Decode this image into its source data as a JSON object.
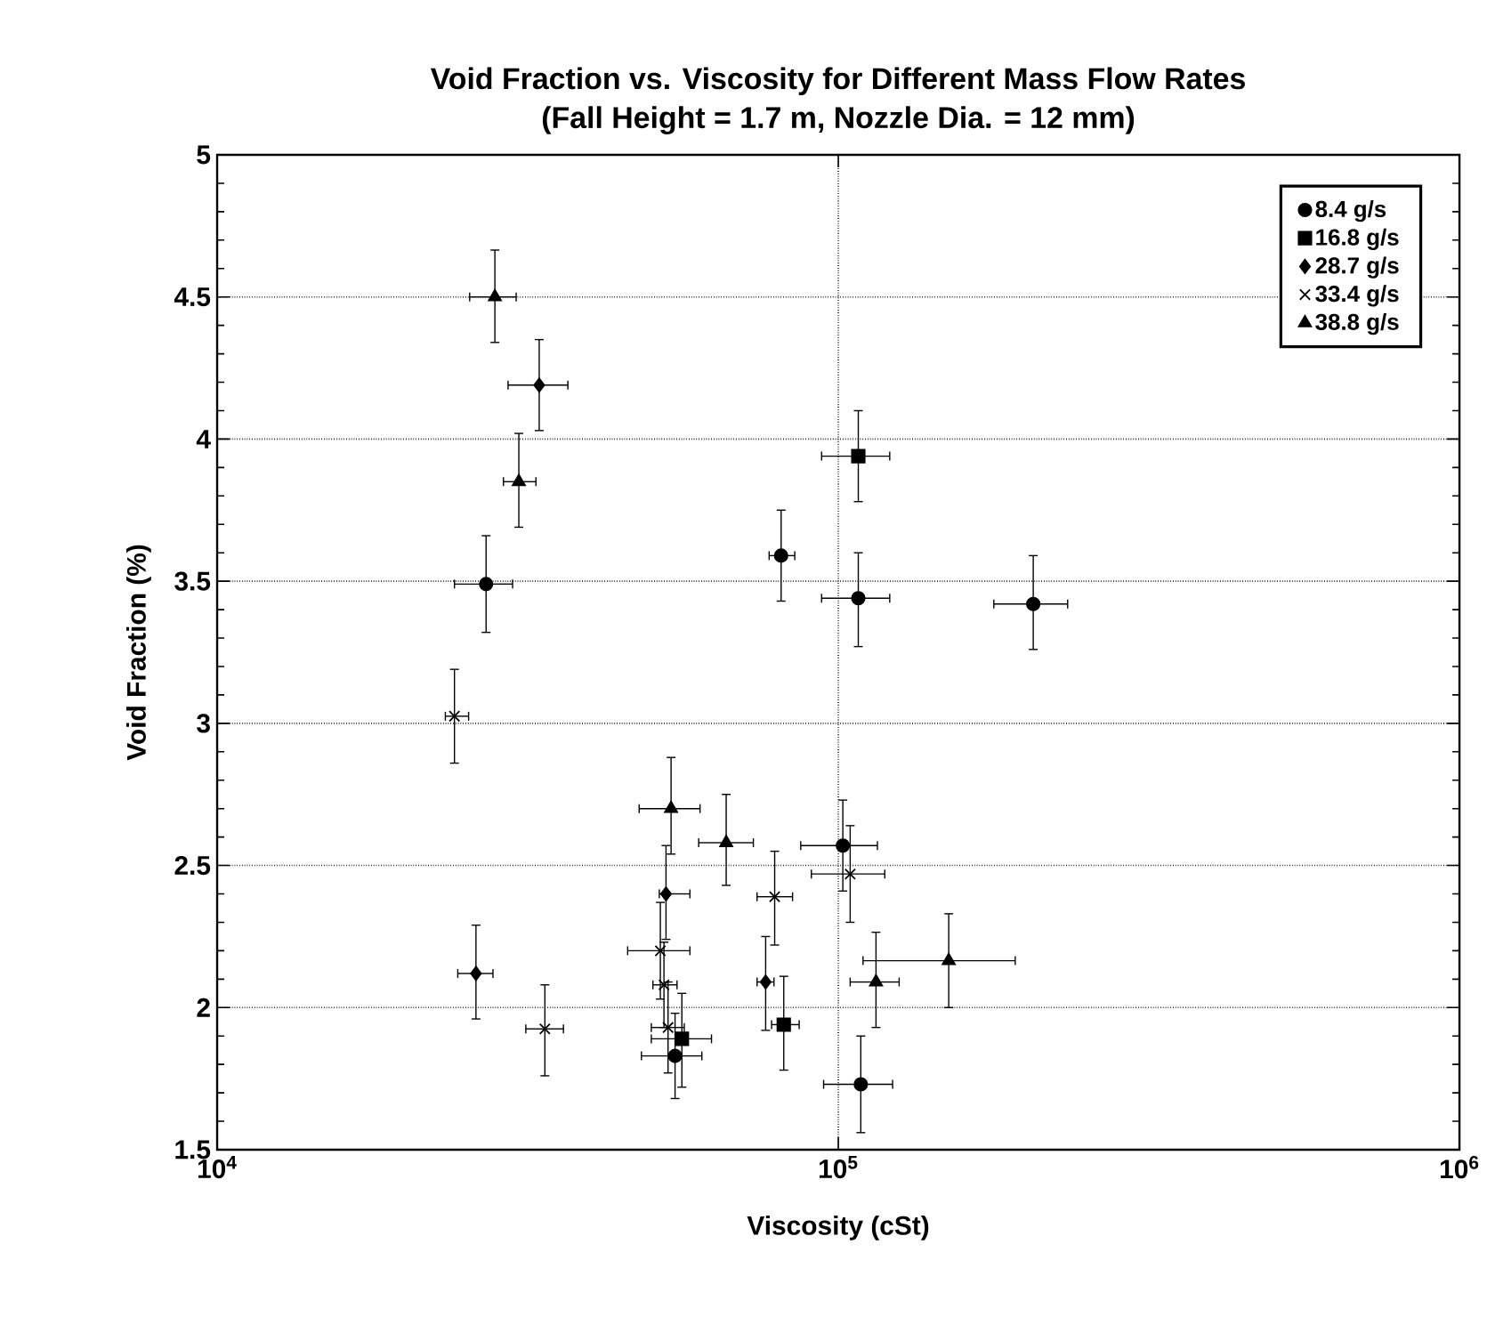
{
  "chart_data": {
    "type": "scatter",
    "title": "Void Fraction vs. Viscosity for Different Mass Flow Rates",
    "subtitle": "(Fall Height = 1.7 m, Nozzle Dia. = 12 mm)",
    "xlabel": "Viscosity (cSt)",
    "ylabel": "Void Fraction (%)",
    "log": "x",
    "grid": true,
    "legend": "top right",
    "xlim": [
      10000,
      1000000
    ],
    "xticks": [
      {
        "value": 10000,
        "label": "10$^{4}$"
      },
      {
        "value": 100000,
        "label": "10$^{5}$"
      },
      {
        "value": 1000000,
        "label": "10$^{6}$"
      }
    ],
    "ylim": [
      1.5,
      5
    ],
    "yticks": [
      1.5,
      2,
      2.5,
      3,
      3.5,
      4,
      4.5,
      5
    ],
    "series": [
      {
        "name": "8.4 g/s",
        "color": "#000000",
        "marker": "circle",
        "x": [
          27100,
          80900,
          107700,
          206000,
          101700,
          54600,
          108700
        ],
        "values": [
          3.49,
          3.59,
          3.44,
          3.42,
          2.57,
          1.83,
          1.73
        ],
        "errors": [
          [
            3.32,
            3.66
          ],
          [
            3.43,
            3.75
          ],
          [
            3.27,
            3.6
          ],
          [
            3.26,
            3.59
          ],
          [
            2.41,
            2.73
          ],
          [
            1.68,
            1.98
          ],
          [
            1.56,
            1.9
          ]
        ],
        "xerrors": [
          [
            24100,
            29900
          ],
          [
            77400,
            85100
          ],
          [
            94000,
            121000
          ],
          [
            178000,
            234000
          ],
          [
            87000,
            115600
          ],
          [
            48200,
            60300
          ],
          [
            94700,
            122300
          ]
        ]
      },
      {
        "name": "16.8 g/s",
        "color": "#000000",
        "marker": "square",
        "x": [
          107700,
          56000,
          81700
        ],
        "values": [
          3.94,
          1.89,
          1.94
        ],
        "errors": [
          [
            3.78,
            4.1
          ],
          [
            1.72,
            2.05
          ],
          [
            1.78,
            2.11
          ]
        ],
        "xerrors": [
          [
            94000,
            121000
          ],
          [
            50000,
            62500
          ],
          [
            78100,
            86500
          ]
        ]
      },
      {
        "name": "28.7 g/s",
        "color": "#000000",
        "marker": "diamond",
        "x": [
          33000,
          52800,
          26100,
          76400
        ],
        "values": [
          4.19,
          2.4,
          2.12,
          2.09
        ],
        "errors": [
          [
            4.03,
            4.35
          ],
          [
            2.24,
            2.57
          ],
          [
            1.96,
            2.29
          ],
          [
            1.92,
            2.25
          ]
        ],
        "xerrors": [
          [
            29400,
            36700
          ],
          [
            51500,
            57700
          ],
          [
            24400,
            27800
          ],
          [
            74000,
            78800
          ]
        ]
      },
      {
        "name": "33.4 g/s",
        "color": "#000000",
        "marker": "cross",
        "x": [
          24100,
          79000,
          51700,
          33700,
          52400,
          53200,
          104500
        ],
        "values": [
          3.025,
          2.39,
          2.2,
          1.925,
          2.08,
          1.93,
          2.47
        ],
        "errors": [
          [
            2.86,
            3.19
          ],
          [
            2.22,
            2.55
          ],
          [
            2.03,
            2.37
          ],
          [
            1.76,
            2.08
          ],
          [
            1.93,
            2.23
          ],
          [
            1.77,
            2.09
          ],
          [
            2.3,
            2.64
          ]
        ],
        "xerrors": [
          [
            23300,
            25400
          ],
          [
            74000,
            84400
          ],
          [
            45800,
            57700
          ],
          [
            31400,
            36100
          ],
          [
            50300,
            55000
          ],
          [
            50000,
            56500
          ],
          [
            90500,
            118800
          ]
        ]
      },
      {
        "name": "38.8 g/s",
        "color": "#000000",
        "marker": "triangle",
        "x": [
          28000,
          30600,
          53800,
          66000,
          115000,
          150600
        ],
        "values": [
          4.5,
          3.85,
          2.7,
          2.58,
          2.09,
          2.165
        ],
        "errors": [
          [
            4.34,
            4.665
          ],
          [
            3.69,
            4.02
          ],
          [
            2.54,
            2.88
          ],
          [
            2.43,
            2.75
          ],
          [
            1.93,
            2.265
          ],
          [
            2.0,
            2.33
          ]
        ],
        "xerrors": [
          [
            25500,
            30300
          ],
          [
            28900,
            32600
          ],
          [
            47800,
            59900
          ],
          [
            59600,
            73000
          ],
          [
            104500,
            125300
          ],
          [
            109600,
            192700
          ]
        ]
      }
    ]
  }
}
